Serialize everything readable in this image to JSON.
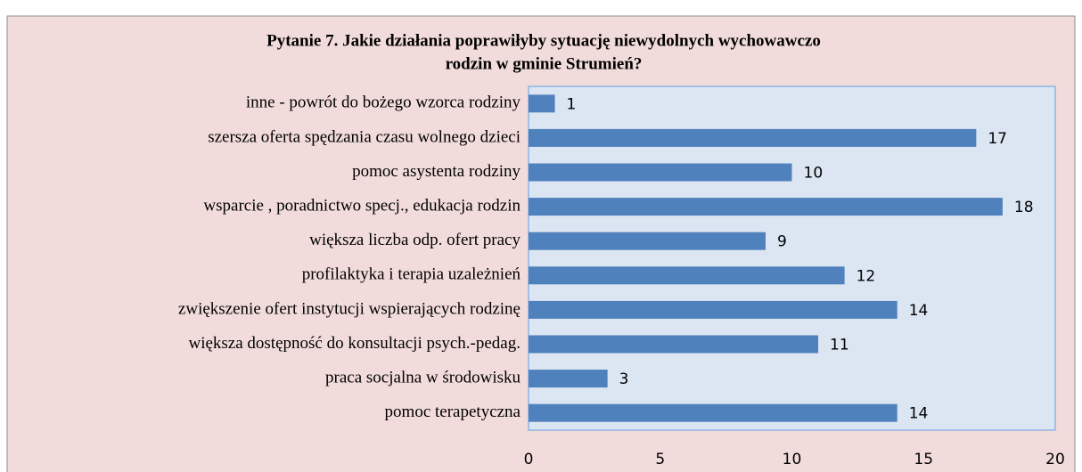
{
  "chart_data": {
    "type": "barh",
    "title": [
      "Pytanie 7. Jakie działania poprawiłyby sytuację niewydolnych wychowawczo",
      "rodzin w gminie Strumień?"
    ],
    "categories": [
      "inne - powrót do bożego wzorca rodziny",
      "szersza oferta spędzania czasu wolnego dzieci",
      "pomoc asystenta rodziny",
      "wsparcie , poradnictwo specj., edukacja rodzin",
      "większa liczba odp. ofert pracy",
      "profilaktyka i terapia uzależnień",
      "zwiększenie ofert instytucji wspierających rodzinę",
      "większa dostępność do konsultacji psych.-pedag.",
      "praca socjalna w środowisku",
      "pomoc terapetyczna"
    ],
    "values": [
      1,
      17,
      10,
      18,
      9,
      12,
      14,
      11,
      3,
      14
    ],
    "color": "#4f81bd",
    "xlim": [
      0,
      20
    ],
    "xticks": [
      0,
      5,
      10,
      15,
      20
    ],
    "grid": false
  }
}
